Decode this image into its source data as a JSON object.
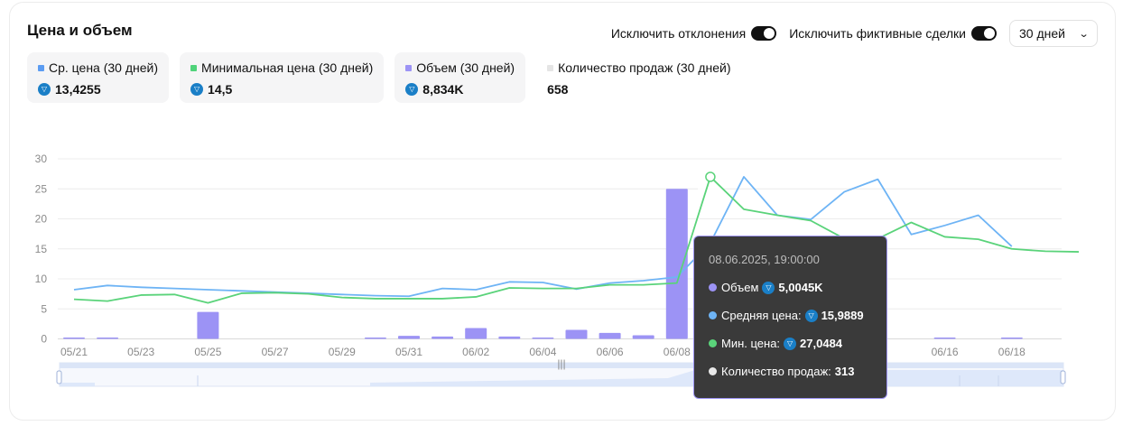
{
  "header": {
    "title": "Цена и объем",
    "toggle_outliers_label": "Исключить отклонения",
    "toggle_fake_label": "Исключить фиктивные сделки",
    "period_select": "30 дней"
  },
  "stats": [
    {
      "label": "Ср. цена (30 дней)",
      "value": "13,4255",
      "color": "#5b9cf2",
      "currency_icon": "ton-icon"
    },
    {
      "label": "Минимальная цена (30 дней)",
      "value": "14,5",
      "color": "#4fd37a",
      "currency_icon": "ton-icon"
    },
    {
      "label": "Объем (30 дней)",
      "value": "8,834K",
      "color": "#9c93f5",
      "currency_icon": "ton-icon"
    },
    {
      "label": "Количество продаж (30 дней)",
      "value": "658",
      "color": "#e5e5e5"
    }
  ],
  "tooltip": {
    "date": "08.06.2025, 19:00:00",
    "volume_label": "Объем",
    "volume_value": "5,0045K",
    "avg_label": "Средняя цена:",
    "avg_value": "15,9889",
    "min_label": "Мин. цена:",
    "min_value": "27,0484",
    "count_label": "Количество продаж:",
    "count_value": "313"
  },
  "chart_data": {
    "type": "bar+line",
    "x_tick_labels": [
      "05/21",
      "05/23",
      "05/25",
      "05/27",
      "05/29",
      "05/31",
      "06/02",
      "06/04",
      "06/06",
      "06/08",
      "06/16",
      "06/18"
    ],
    "y_ticks": [
      0,
      5,
      10,
      15,
      20,
      25,
      30
    ],
    "ylim": [
      0,
      30
    ],
    "grid": true,
    "colors": {
      "volume": "#9c93f5",
      "avg": "#6eb4f5",
      "min": "#5ad37a"
    },
    "volume_bars": [
      {
        "x": 0.0,
        "y": 0.2
      },
      {
        "x": 1.0,
        "y": 0.2
      },
      {
        "x": 4.0,
        "y": 4.5
      },
      {
        "x": 9.0,
        "y": 0.2
      },
      {
        "x": 10.0,
        "y": 0.5
      },
      {
        "x": 11.0,
        "y": 0.4
      },
      {
        "x": 12.0,
        "y": 1.8
      },
      {
        "x": 13.0,
        "y": 0.4
      },
      {
        "x": 14.0,
        "y": 0.1
      },
      {
        "x": 15.0,
        "y": 1.5
      },
      {
        "x": 16.0,
        "y": 1.0
      },
      {
        "x": 17.0,
        "y": 0.6
      },
      {
        "x": 18.0,
        "y": 25.0
      },
      {
        "x": 26.0,
        "y": 0.1
      },
      {
        "x": 28.0,
        "y": 0.2
      }
    ],
    "series": [
      {
        "key": "avg",
        "points": [
          [
            0.0,
            8.2
          ],
          [
            1.0,
            8.9
          ],
          [
            2.0,
            8.6
          ],
          [
            3.0,
            8.4
          ],
          [
            4.0,
            8.2
          ],
          [
            5.0,
            8.0
          ],
          [
            6.0,
            7.8
          ],
          [
            7.0,
            7.6
          ],
          [
            8.0,
            7.4
          ],
          [
            9.0,
            7.2
          ],
          [
            10.0,
            7.1
          ],
          [
            11.0,
            8.4
          ],
          [
            12.0,
            8.2
          ],
          [
            13.0,
            9.5
          ],
          [
            14.0,
            9.4
          ],
          [
            15.0,
            8.3
          ],
          [
            16.0,
            9.3
          ],
          [
            17.0,
            9.7
          ],
          [
            18.0,
            10.3
          ],
          [
            19.0,
            16.0
          ],
          [
            20.0,
            27.0
          ],
          [
            21.0,
            20.6
          ],
          [
            22.0,
            19.9
          ],
          [
            23.0,
            24.5
          ],
          [
            24.0,
            26.6
          ],
          [
            25.0,
            17.4
          ],
          [
            26.0,
            18.9
          ],
          [
            27.0,
            20.6
          ],
          [
            28.0,
            15.4
          ]
        ]
      },
      {
        "key": "min",
        "points": [
          [
            0.0,
            6.6
          ],
          [
            1.0,
            6.3
          ],
          [
            2.0,
            7.3
          ],
          [
            3.0,
            7.4
          ],
          [
            4.0,
            6.0
          ],
          [
            5.0,
            7.6
          ],
          [
            6.0,
            7.7
          ],
          [
            7.0,
            7.5
          ],
          [
            8.0,
            6.9
          ],
          [
            9.0,
            6.7
          ],
          [
            10.0,
            6.7
          ],
          [
            11.0,
            6.7
          ],
          [
            12.0,
            7.0
          ],
          [
            13.0,
            8.5
          ],
          [
            14.0,
            8.4
          ],
          [
            15.0,
            8.4
          ],
          [
            16.0,
            9.0
          ],
          [
            17.0,
            9.0
          ],
          [
            18.0,
            9.3
          ],
          [
            19.0,
            27.0
          ],
          [
            20.0,
            21.6
          ],
          [
            21.0,
            20.6
          ],
          [
            22.0,
            19.7
          ],
          [
            23.0,
            16.7
          ],
          [
            24.0,
            16.7
          ],
          [
            25.0,
            19.4
          ],
          [
            26.0,
            17.0
          ],
          [
            27.0,
            16.6
          ],
          [
            28.0,
            15.0
          ],
          [
            29.0,
            14.6
          ],
          [
            30.0,
            14.5
          ]
        ]
      }
    ],
    "highlight_x": 19.0
  }
}
